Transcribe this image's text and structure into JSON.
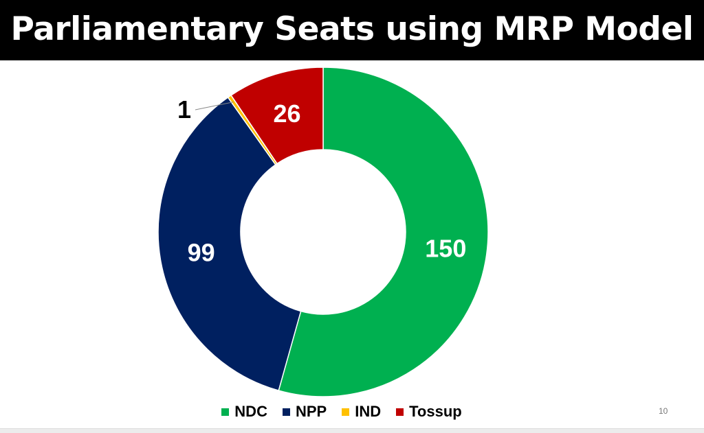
{
  "slide": {
    "page_number": "10"
  },
  "chart_data": {
    "type": "pie",
    "subtype": "donut",
    "title": "Parliamentary Seats using MRP Model",
    "categories": [
      "NDC",
      "NPP",
      "IND",
      "Tossup"
    ],
    "values": [
      150,
      99,
      1,
      26
    ],
    "data_labels": [
      "150",
      "99",
      "1",
      "26"
    ],
    "colors": [
      "#00b050",
      "#002060",
      "#ffc000",
      "#c00000"
    ],
    "start_angle": "top, clockwise",
    "legend_position": "bottom"
  }
}
